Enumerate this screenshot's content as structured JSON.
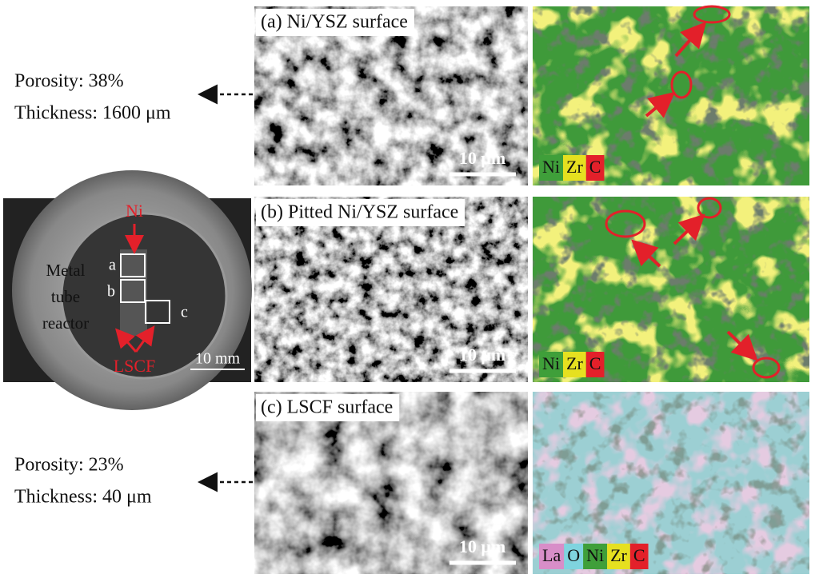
{
  "notes": [
    {
      "porosity": "Porosity: 38%",
      "thickness": "Thickness: 1600 μm"
    },
    {
      "porosity": "Porosity: 23%",
      "thickness": "Thickness: 40 μm"
    }
  ],
  "photo": {
    "ni": "Ni",
    "lscf": "LSCF",
    "reactor": [
      "Metal",
      "tube",
      "reactor"
    ],
    "boxes": [
      "a",
      "b",
      "c"
    ],
    "scale": "10 mm"
  },
  "panels": [
    {
      "title": "(a) Ni/YSZ surface",
      "scale": "10 μm",
      "legend": [
        {
          "label": "Ni",
          "color": "#3f9f3a"
        },
        {
          "label": "Zr",
          "color": "#e6e020"
        },
        {
          "label": "C",
          "color": "#e3202a"
        }
      ]
    },
    {
      "title": "(b) Pitted Ni/YSZ surface",
      "scale": "10 μm",
      "legend": [
        {
          "label": "Ni",
          "color": "#3f9f3a"
        },
        {
          "label": "Zr",
          "color": "#e6e020"
        },
        {
          "label": "C",
          "color": "#e3202a"
        }
      ]
    },
    {
      "title": "(c) LSCF surface",
      "scale": "10 μm",
      "legend": [
        {
          "label": "La",
          "color": "#d88ec8"
        },
        {
          "label": "O",
          "color": "#7fd4df"
        },
        {
          "label": "Ni",
          "color": "#3f9f3a"
        },
        {
          "label": "Zr",
          "color": "#e6e020"
        },
        {
          "label": "C",
          "color": "#e3202a"
        }
      ]
    }
  ]
}
